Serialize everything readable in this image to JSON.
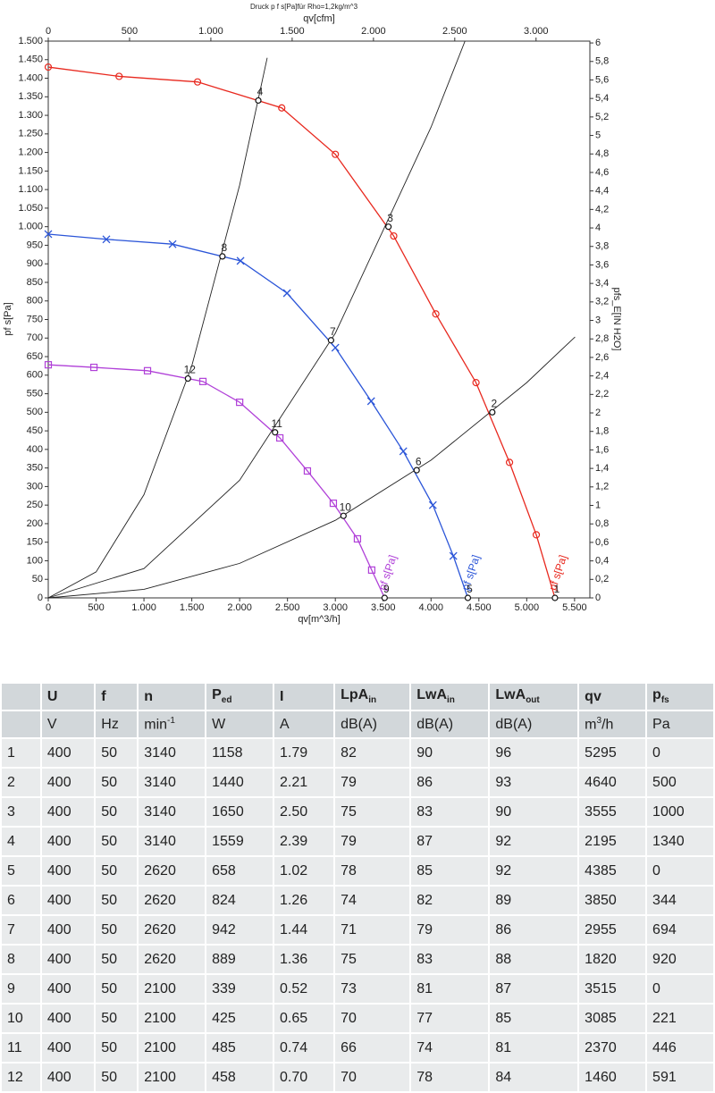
{
  "chart_data": {
    "type": "line",
    "title": "Druck p f s[Pa]für Rho=1,2kg/m^3",
    "xlabel": "qv[m^3/h]",
    "x2label": "qv[cfm]",
    "ylabel": "pf s[Pa]",
    "y2label": "pfs_E[IN H2O]",
    "xlim": [
      0,
      5660
    ],
    "ylim": [
      0,
      1500
    ],
    "x2lim": [
      0,
      3331
    ],
    "y2lim": [
      0,
      6.02
    ],
    "xticks": [
      0,
      500,
      {
        "value": 1000,
        "label": "1.000"
      },
      {
        "value": 1500,
        "label": "1.500"
      },
      {
        "value": 2000,
        "label": "2.000"
      },
      {
        "value": 2500,
        "label": "2.500"
      },
      {
        "value": 3000,
        "label": "3.000"
      },
      {
        "value": 3500,
        "label": "3.500"
      },
      {
        "value": 4000,
        "label": "4.000"
      },
      {
        "value": 4500,
        "label": "4.500"
      },
      {
        "value": 5000,
        "label": "5.000"
      },
      {
        "value": 5500,
        "label": "5.500"
      }
    ],
    "x2ticks": [
      0,
      500,
      {
        "value": 1000,
        "label": "1.000"
      },
      {
        "value": 1500,
        "label": "1.500"
      },
      {
        "value": 2000,
        "label": "2.000"
      },
      {
        "value": 2500,
        "label": "2.500"
      },
      {
        "value": 3000,
        "label": "3.000"
      }
    ],
    "yticks": [
      0,
      50,
      100,
      150,
      200,
      250,
      300,
      350,
      400,
      450,
      500,
      550,
      600,
      650,
      700,
      750,
      800,
      850,
      900,
      950,
      {
        "value": 1000,
        "label": "1.000"
      },
      {
        "value": 1050,
        "label": "1.050"
      },
      {
        "value": 1100,
        "label": "1.100"
      },
      {
        "value": 1150,
        "label": "1.150"
      },
      {
        "value": 1200,
        "label": "1.200"
      },
      {
        "value": 1250,
        "label": "1.250"
      },
      {
        "value": 1300,
        "label": "1.300"
      },
      {
        "value": 1350,
        "label": "1.350"
      },
      {
        "value": 1400,
        "label": "1.400"
      },
      {
        "value": 1450,
        "label": "1.450"
      },
      {
        "value": 1500,
        "label": "1.500"
      }
    ],
    "y2ticks": [
      0,
      {
        "value": 0.2,
        "label": "0,2"
      },
      {
        "value": 0.4,
        "label": "0,4"
      },
      {
        "value": 0.6,
        "label": "0,6"
      },
      {
        "value": 0.8,
        "label": "0,8"
      },
      1,
      {
        "value": 1.2,
        "label": "1,2"
      },
      {
        "value": 1.4,
        "label": "1,4"
      },
      {
        "value": 1.6,
        "label": "1,6"
      },
      {
        "value": 1.8,
        "label": "1,8"
      },
      2,
      {
        "value": 2.2,
        "label": "2,2"
      },
      {
        "value": 2.4,
        "label": "2,4"
      },
      {
        "value": 2.6,
        "label": "2,6"
      },
      {
        "value": 2.8,
        "label": "2,8"
      },
      3,
      {
        "value": 3.2,
        "label": "3,2"
      },
      {
        "value": 3.4,
        "label": "3,4"
      },
      {
        "value": 3.6,
        "label": "3,6"
      },
      {
        "value": 3.8,
        "label": "3,8"
      },
      4,
      {
        "value": 4.2,
        "label": "4,2"
      },
      {
        "value": 4.4,
        "label": "4,4"
      },
      {
        "value": 4.6,
        "label": "4,6"
      },
      {
        "value": 4.8,
        "label": "4,8"
      },
      5,
      {
        "value": 5.2,
        "label": "5,2"
      },
      {
        "value": 5.4,
        "label": "5,4"
      },
      {
        "value": 5.6,
        "label": "5,6"
      },
      {
        "value": 5.8,
        "label": "5,8"
      },
      6
    ],
    "grid": false,
    "series": [
      {
        "name": "pf s[Pa]",
        "color": "#e8281e",
        "marker": "circle",
        "x": [
          0,
          740,
          1560,
          2440,
          3000,
          3610,
          4050,
          4470,
          4820,
          5100,
          5295
        ],
        "values": [
          1430,
          1405,
          1390,
          1320,
          1195,
          975,
          765,
          580,
          365,
          170,
          0
        ]
      },
      {
        "name": "pf s[Pa]",
        "color": "#2b55d8",
        "marker": "x",
        "x": [
          0,
          607,
          1299,
          2009,
          2495,
          3000,
          3374,
          3710,
          4019,
          4233,
          4385
        ],
        "values": [
          980,
          966,
          953,
          908,
          821,
          674,
          530,
          395,
          250,
          113,
          0
        ]
      },
      {
        "name": "pf s[Pa]",
        "color": "#b040d8",
        "marker": "square",
        "x": [
          0,
          477,
          1037,
          1616,
          2000,
          2420,
          2708,
          2979,
          3231,
          3380,
          3515
        ],
        "values": [
          628,
          621,
          612,
          583,
          527,
          431,
          342,
          255,
          159,
          75,
          0
        ]
      },
      {
        "color": "#222222",
        "marker": "none",
        "x": [
          0,
          500,
          1000,
          1500,
          2000,
          2288
        ],
        "values": [
          0,
          70,
          278,
          625,
          1112,
          1455
        ]
      },
      {
        "color": "#222222",
        "marker": "none",
        "x": [
          0,
          1000,
          2000,
          3000,
          4000,
          4355
        ],
        "values": [
          0,
          79,
          317,
          713,
          1268,
          1500
        ]
      },
      {
        "color": "#222222",
        "marker": "none",
        "x": [
          0,
          1000,
          2000,
          3000,
          4000,
          5000,
          5505
        ],
        "values": [
          0,
          23,
          93,
          209,
          371,
          580,
          703
        ]
      }
    ],
    "operating_points": [
      {
        "label": "1",
        "x": 5295,
        "y": 0
      },
      {
        "label": "2",
        "x": 4640,
        "y": 500
      },
      {
        "label": "3",
        "x": 3555,
        "y": 1000
      },
      {
        "label": "4",
        "x": 2195,
        "y": 1340
      },
      {
        "label": "5",
        "x": 4385,
        "y": 0
      },
      {
        "label": "6",
        "x": 3850,
        "y": 344
      },
      {
        "label": "7",
        "x": 2955,
        "y": 694
      },
      {
        "label": "8",
        "x": 1820,
        "y": 920
      },
      {
        "label": "9",
        "x": 3515,
        "y": 0
      },
      {
        "label": "10",
        "x": 3085,
        "y": 221
      },
      {
        "label": "11",
        "x": 2370,
        "y": 446
      },
      {
        "label": "12",
        "x": 1460,
        "y": 591
      }
    ]
  },
  "table": {
    "header": [
      {
        "main": "U"
      },
      {
        "main": "f"
      },
      {
        "main": "n"
      },
      {
        "main": "P",
        "sub": "ed"
      },
      {
        "main": "I"
      },
      {
        "main": "LpA",
        "sub": "in"
      },
      {
        "main": "LwA",
        "sub": "in"
      },
      {
        "main": "LwA",
        "sub": "out"
      },
      {
        "main": "qv"
      },
      {
        "main": "p",
        "sub": "fs"
      }
    ],
    "units": [
      {
        "main": "V"
      },
      {
        "main": "Hz"
      },
      {
        "main": "min",
        "sup": "-1"
      },
      {
        "main": "W"
      },
      {
        "main": "A"
      },
      {
        "main": "dB(A)"
      },
      {
        "main": "dB(A)"
      },
      {
        "main": "dB(A)"
      },
      {
        "main": "m",
        "sup": "3",
        "rest": "/h"
      },
      {
        "main": "Pa"
      }
    ],
    "rows": [
      [
        "1",
        "400",
        "50",
        "3140",
        "1158",
        "1.79",
        "82",
        "90",
        "96",
        "5295",
        "0"
      ],
      [
        "2",
        "400",
        "50",
        "3140",
        "1440",
        "2.21",
        "79",
        "86",
        "93",
        "4640",
        "500"
      ],
      [
        "3",
        "400",
        "50",
        "3140",
        "1650",
        "2.50",
        "75",
        "83",
        "90",
        "3555",
        "1000"
      ],
      [
        "4",
        "400",
        "50",
        "3140",
        "1559",
        "2.39",
        "79",
        "87",
        "92",
        "2195",
        "1340"
      ],
      [
        "5",
        "400",
        "50",
        "2620",
        "658",
        "1.02",
        "78",
        "85",
        "92",
        "4385",
        "0"
      ],
      [
        "6",
        "400",
        "50",
        "2620",
        "824",
        "1.26",
        "74",
        "82",
        "89",
        "3850",
        "344"
      ],
      [
        "7",
        "400",
        "50",
        "2620",
        "942",
        "1.44",
        "71",
        "79",
        "86",
        "2955",
        "694"
      ],
      [
        "8",
        "400",
        "50",
        "2620",
        "889",
        "1.36",
        "75",
        "83",
        "88",
        "1820",
        "920"
      ],
      [
        "9",
        "400",
        "50",
        "2100",
        "339",
        "0.52",
        "73",
        "81",
        "87",
        "3515",
        "0"
      ],
      [
        "10",
        "400",
        "50",
        "2100",
        "425",
        "0.65",
        "70",
        "77",
        "85",
        "3085",
        "221"
      ],
      [
        "11",
        "400",
        "50",
        "2100",
        "485",
        "0.74",
        "66",
        "74",
        "81",
        "2370",
        "446"
      ],
      [
        "12",
        "400",
        "50",
        "2100",
        "458",
        "0.70",
        "70",
        "78",
        "84",
        "1460",
        "591"
      ]
    ]
  }
}
